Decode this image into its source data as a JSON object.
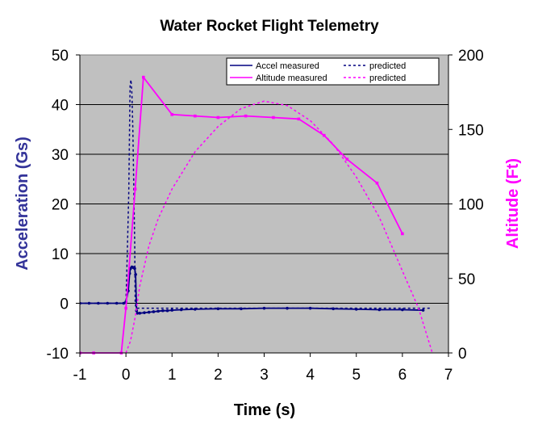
{
  "chart_data": {
    "type": "line",
    "title": "Water Rocket Flight Telemetry",
    "xlabel": "Time (s)",
    "ylabel_left": "Acceleration (Gs)",
    "ylabel_right": "Altitude (Ft)",
    "xlim": [
      -1,
      7
    ],
    "ylim_left": [
      -10,
      50
    ],
    "ylim_right": [
      0,
      200
    ],
    "xticks": [
      "-1",
      "0",
      "1",
      "2",
      "3",
      "4",
      "5",
      "6",
      "7"
    ],
    "yticks_left": [
      "-10",
      "0",
      "10",
      "20",
      "30",
      "40",
      "50"
    ],
    "yticks_right": [
      "0",
      "50",
      "100",
      "150",
      "200"
    ],
    "grid": "horizontal",
    "plot_background": "#c0c0c0",
    "legend": {
      "placement": "top-right",
      "entries": [
        "Accel measured",
        "predicted",
        "Altitude measured",
        "predicted"
      ]
    },
    "colors": {
      "accel": "#000080",
      "altitude": "#ff00ff",
      "left_axis_label": "#333399",
      "right_axis_label": "#ff00ff"
    },
    "series": [
      {
        "name": "Accel measured",
        "axis": "left",
        "style": "solid-markers",
        "x": [
          -1.0,
          -0.8,
          -0.6,
          -0.4,
          -0.2,
          -0.05,
          0.0,
          0.05,
          0.08,
          0.1,
          0.13,
          0.16,
          0.19,
          0.21,
          0.23,
          0.25,
          0.3,
          0.4,
          0.5,
          0.6,
          0.7,
          0.8,
          0.9,
          1.0,
          1.2,
          1.5,
          2.0,
          2.5,
          3.0,
          3.5,
          4.0,
          4.5,
          5.0,
          5.5,
          6.0,
          6.45
        ],
        "y": [
          0,
          0,
          0,
          0,
          0,
          0,
          0.3,
          2.5,
          6,
          7,
          7.3,
          7.2,
          7,
          5.8,
          -1.5,
          -2,
          -2,
          -1.9,
          -1.8,
          -1.7,
          -1.6,
          -1.5,
          -1.5,
          -1.4,
          -1.3,
          -1.2,
          -1.1,
          -1.1,
          -1.0,
          -1.0,
          -1.0,
          -1.1,
          -1.2,
          -1.3,
          -1.3,
          -1.4
        ]
      },
      {
        "name": "predicted",
        "axis": "left",
        "style": "dashed",
        "x": [
          -1.0,
          0.0,
          0.03,
          0.06,
          0.09,
          0.11,
          0.13,
          0.15,
          0.17,
          0.19,
          0.2,
          0.22,
          0.25,
          0.5,
          1.0,
          2.0,
          3.0,
          4.0,
          5.0,
          6.0,
          6.6
        ],
        "y": [
          0,
          0,
          10,
          22,
          44,
          45,
          42,
          35,
          24,
          12,
          0,
          -1,
          -1,
          -1,
          -1,
          -1,
          -1,
          -1,
          -1,
          -1,
          -1
        ]
      },
      {
        "name": "Altitude measured",
        "axis": "right",
        "style": "solid-markers",
        "x": [
          -1.0,
          -0.7,
          -0.1,
          0.0,
          0.2,
          0.38,
          1.0,
          1.5,
          2.0,
          2.6,
          3.2,
          3.75,
          4.3,
          4.8,
          5.45,
          6.0
        ],
        "y": [
          0,
          0,
          0,
          30,
          110,
          185,
          160,
          159,
          158,
          159,
          158,
          157,
          146,
          130,
          114,
          80
        ]
      },
      {
        "name": "predicted",
        "axis": "right",
        "style": "dashed",
        "x": [
          0.0,
          0.1,
          0.2,
          0.3,
          0.5,
          0.7,
          1.0,
          1.5,
          2.0,
          2.5,
          3.0,
          3.5,
          4.0,
          4.5,
          5.0,
          5.5,
          6.0,
          6.35,
          6.65
        ],
        "y": [
          0,
          8,
          24,
          45,
          72,
          90,
          110,
          135,
          152,
          164,
          169,
          166,
          156,
          140,
          118,
          91,
          55,
          30,
          0
        ]
      }
    ]
  }
}
